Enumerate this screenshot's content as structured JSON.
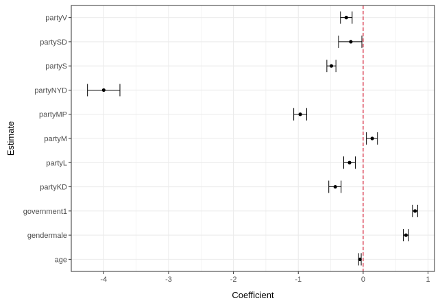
{
  "chart_data": {
    "type": "scatter",
    "title": "",
    "xlabel": "Coefficient",
    "ylabel": "Estimate",
    "xlim": [
      -4.5,
      1.1
    ],
    "x_ticks": [
      -4,
      -3,
      -2,
      -1,
      0,
      1
    ],
    "x_tick_labels": [
      "-4",
      "-3",
      "-2",
      "-1",
      "0",
      "1"
    ],
    "grid": true,
    "reference_line": {
      "x": 0,
      "color": "#d7263d",
      "style": "dashed"
    },
    "categories": [
      "partyV",
      "partySD",
      "partyS",
      "partyNYD",
      "partyMP",
      "partyM",
      "partyL",
      "partyKD",
      "government1",
      "gendermale",
      "age"
    ],
    "series": [
      {
        "estimate": [
          -0.26,
          -0.19,
          -0.49,
          -4.0,
          -0.97,
          0.14,
          -0.21,
          -0.43,
          0.8,
          0.66,
          -0.05
        ],
        "lower": [
          -0.35,
          -0.38,
          -0.56,
          -4.25,
          -1.07,
          0.05,
          -0.3,
          -0.53,
          0.76,
          0.62,
          -0.07
        ],
        "upper": [
          -0.17,
          -0.02,
          -0.42,
          -3.75,
          -0.87,
          0.22,
          -0.12,
          -0.34,
          0.84,
          0.7,
          -0.03
        ]
      }
    ],
    "colors": {
      "point": "#000000",
      "panel_border": "#333333",
      "grid": "#ebebeb"
    }
  }
}
